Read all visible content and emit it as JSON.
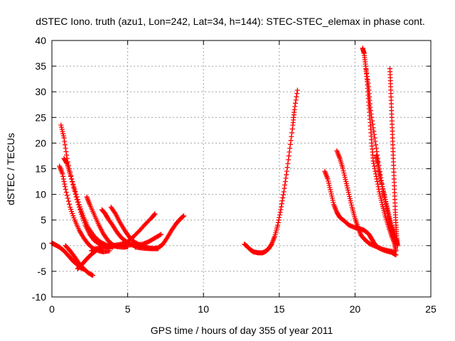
{
  "chart_data": {
    "type": "scatter",
    "title": "dSTEC Iono. truth (azu1, Lon=242, Lat=34, h=144): STEC-STEC_elemax in phase cont.",
    "xlabel": "GPS time / hours of day 355 of year 2011",
    "ylabel": "dSTEC  / TECUs",
    "xlim": [
      0,
      25
    ],
    "ylim": [
      -10,
      40
    ],
    "xticks": [
      0,
      5,
      10,
      15,
      20,
      25
    ],
    "yticks": [
      -10,
      -5,
      0,
      5,
      10,
      15,
      20,
      25,
      30,
      35,
      40
    ],
    "grid": true,
    "legend": "none",
    "marker": "plus",
    "color": "#ff0000",
    "series": [
      {
        "points": [
          [
            0.0,
            0.5
          ],
          [
            0.2,
            0.2
          ],
          [
            0.5,
            -0.3
          ],
          [
            0.8,
            -1.0
          ],
          [
            1.1,
            -2.0
          ],
          [
            1.4,
            -3.0
          ],
          [
            1.7,
            -3.8
          ],
          [
            1.9,
            -4.3
          ],
          [
            2.1,
            -4.6
          ]
        ]
      },
      {
        "points": [
          [
            0.9,
            0.0
          ],
          [
            1.2,
            -1.0
          ],
          [
            1.5,
            -2.2
          ],
          [
            1.8,
            -3.5
          ],
          [
            2.1,
            -4.5
          ],
          [
            2.4,
            -5.3
          ],
          [
            2.7,
            -5.8
          ]
        ]
      },
      {
        "points": [
          [
            0.5,
            15.5
          ],
          [
            0.7,
            14.0
          ],
          [
            0.9,
            11.0
          ],
          [
            1.2,
            7.5
          ],
          [
            1.5,
            5.0
          ],
          [
            1.8,
            3.0
          ],
          [
            2.1,
            1.5
          ],
          [
            2.4,
            0.3
          ],
          [
            2.7,
            -0.5
          ],
          [
            3.1,
            -1.0
          ],
          [
            3.4,
            -1.2
          ],
          [
            3.8,
            -1.0
          ]
        ]
      },
      {
        "points": [
          [
            0.6,
            23.5
          ],
          [
            0.8,
            21.0
          ],
          [
            1.0,
            17.0
          ],
          [
            1.3,
            13.0
          ],
          [
            1.6,
            9.5
          ],
          [
            1.9,
            6.5
          ],
          [
            2.2,
            4.0
          ],
          [
            2.5,
            2.2
          ],
          [
            2.8,
            1.0
          ],
          [
            3.2,
            0.2
          ],
          [
            3.6,
            -0.2
          ],
          [
            4.0,
            -0.3
          ]
        ]
      },
      {
        "points": [
          [
            0.8,
            17.0
          ],
          [
            1.0,
            16.0
          ],
          [
            1.2,
            14.0
          ],
          [
            1.5,
            11.0
          ],
          [
            1.8,
            8.0
          ],
          [
            2.1,
            5.5
          ],
          [
            2.4,
            3.5
          ],
          [
            2.8,
            1.8
          ],
          [
            3.2,
            0.7
          ],
          [
            3.6,
            0.1
          ],
          [
            4.0,
            -0.1
          ],
          [
            4.4,
            0.0
          ]
        ]
      },
      {
        "points": [
          [
            2.3,
            9.5
          ],
          [
            2.5,
            8.0
          ],
          [
            2.8,
            6.0
          ],
          [
            3.1,
            4.0
          ],
          [
            3.4,
            2.3
          ],
          [
            3.7,
            1.0
          ],
          [
            4.0,
            0.2
          ],
          [
            4.3,
            -0.2
          ],
          [
            4.7,
            -0.3
          ],
          [
            5.0,
            -0.2
          ]
        ]
      },
      {
        "points": [
          [
            3.3,
            7.0
          ],
          [
            3.5,
            6.3
          ],
          [
            3.7,
            5.3
          ],
          [
            4.0,
            4.0
          ],
          [
            4.3,
            2.6
          ],
          [
            4.6,
            1.5
          ],
          [
            5.0,
            0.6
          ],
          [
            5.4,
            0.0
          ],
          [
            5.8,
            -0.3
          ],
          [
            6.2,
            -0.5
          ],
          [
            6.6,
            -0.5
          ]
        ]
      },
      {
        "points": [
          [
            3.9,
            7.5
          ],
          [
            4.2,
            6.2
          ],
          [
            4.5,
            4.5
          ],
          [
            4.8,
            3.0
          ],
          [
            5.1,
            1.7
          ],
          [
            5.4,
            0.8
          ],
          [
            5.8,
            0.1
          ],
          [
            6.2,
            -0.3
          ],
          [
            6.6,
            -0.6
          ],
          [
            7.0,
            -0.6
          ]
        ]
      },
      {
        "points": [
          [
            1.7,
            -4.5
          ],
          [
            2.0,
            -3.6
          ],
          [
            2.3,
            -2.6
          ],
          [
            2.6,
            -1.7
          ],
          [
            3.0,
            -0.8
          ],
          [
            3.4,
            -0.2
          ],
          [
            3.8,
            0.0
          ],
          [
            4.2,
            0.1
          ],
          [
            4.6,
            0.3
          ],
          [
            5.0,
            0.8
          ],
          [
            5.4,
            1.8
          ],
          [
            5.8,
            3.0
          ],
          [
            6.2,
            4.3
          ],
          [
            6.6,
            5.5
          ],
          [
            6.8,
            6.2
          ]
        ]
      },
      {
        "points": [
          [
            2.6,
            -1.0
          ],
          [
            3.0,
            -0.5
          ],
          [
            3.5,
            -0.2
          ],
          [
            4.0,
            -0.1
          ],
          [
            4.5,
            0.0
          ],
          [
            5.0,
            0.1
          ],
          [
            5.5,
            0.2
          ],
          [
            6.0,
            0.3
          ],
          [
            6.4,
            0.8
          ],
          [
            6.8,
            1.5
          ],
          [
            7.2,
            2.2
          ]
        ]
      },
      {
        "points": [
          [
            5.5,
            -0.3
          ],
          [
            6.0,
            -0.5
          ],
          [
            6.5,
            -0.6
          ],
          [
            7.0,
            -0.4
          ],
          [
            7.3,
            0.2
          ],
          [
            7.6,
            1.5
          ],
          [
            7.9,
            3.0
          ],
          [
            8.2,
            4.3
          ],
          [
            8.5,
            5.3
          ],
          [
            8.7,
            5.8
          ]
        ]
      },
      {
        "points": [
          [
            12.7,
            0.3
          ],
          [
            12.9,
            -0.2
          ],
          [
            13.1,
            -0.8
          ],
          [
            13.3,
            -1.2
          ],
          [
            13.6,
            -1.4
          ],
          [
            13.9,
            -1.4
          ],
          [
            14.1,
            -1.1
          ],
          [
            14.3,
            -0.6
          ],
          [
            14.5,
            0.3
          ],
          [
            14.7,
            1.8
          ],
          [
            14.9,
            4.0
          ],
          [
            15.1,
            7.0
          ],
          [
            15.3,
            10.5
          ],
          [
            15.5,
            14.5
          ],
          [
            15.7,
            19.0
          ],
          [
            15.9,
            23.5
          ],
          [
            16.0,
            26.5
          ],
          [
            16.2,
            30.3
          ]
        ]
      },
      {
        "points": [
          [
            18.0,
            14.5
          ],
          [
            18.2,
            13.0
          ],
          [
            18.4,
            10.5
          ],
          [
            18.6,
            8.0
          ],
          [
            18.8,
            6.5
          ],
          [
            19.0,
            5.5
          ],
          [
            19.3,
            4.8
          ],
          [
            19.6,
            4.0
          ],
          [
            20.0,
            3.5
          ],
          [
            20.3,
            3.3
          ],
          [
            20.6,
            3.0
          ],
          [
            20.9,
            2.3
          ],
          [
            21.1,
            1.3
          ],
          [
            21.3,
            0.3
          ],
          [
            21.6,
            -0.5
          ],
          [
            22.0,
            -1.0
          ],
          [
            22.4,
            -1.3
          ],
          [
            22.7,
            -1.8
          ]
        ]
      },
      {
        "points": [
          [
            18.8,
            18.5
          ],
          [
            19.0,
            17.0
          ],
          [
            19.2,
            15.0
          ],
          [
            19.4,
            12.5
          ],
          [
            19.6,
            10.0
          ],
          [
            19.8,
            7.5
          ],
          [
            20.0,
            5.3
          ],
          [
            20.2,
            3.5
          ],
          [
            20.4,
            2.0
          ],
          [
            20.7,
            1.0
          ],
          [
            21.0,
            0.3
          ],
          [
            21.4,
            -0.2
          ],
          [
            21.8,
            -0.7
          ],
          [
            22.2,
            -1.0
          ],
          [
            22.6,
            -1.2
          ]
        ]
      },
      {
        "points": [
          [
            20.5,
            38.5
          ],
          [
            20.6,
            37.5
          ],
          [
            20.7,
            35.0
          ],
          [
            20.8,
            32.0
          ],
          [
            20.9,
            28.0
          ],
          [
            21.0,
            24.0
          ],
          [
            21.1,
            20.0
          ],
          [
            21.2,
            16.5
          ],
          [
            21.4,
            13.5
          ],
          [
            21.6,
            10.5
          ],
          [
            21.8,
            8.0
          ],
          [
            22.0,
            5.8
          ],
          [
            22.2,
            3.8
          ],
          [
            22.4,
            2.0
          ],
          [
            22.6,
            0.5
          ],
          [
            22.7,
            -1.0
          ]
        ]
      },
      {
        "points": [
          [
            20.7,
            35.0
          ],
          [
            20.9,
            31.0
          ],
          [
            21.0,
            27.0
          ],
          [
            21.2,
            23.0
          ],
          [
            21.4,
            19.0
          ],
          [
            21.6,
            15.0
          ],
          [
            21.8,
            11.5
          ],
          [
            22.0,
            8.5
          ],
          [
            22.2,
            5.8
          ],
          [
            22.4,
            3.5
          ],
          [
            22.6,
            1.5
          ],
          [
            22.8,
            0.2
          ]
        ]
      },
      {
        "points": [
          [
            21.4,
            17.5
          ],
          [
            21.5,
            16.0
          ],
          [
            21.6,
            14.0
          ],
          [
            21.8,
            11.5
          ],
          [
            22.0,
            9.0
          ],
          [
            22.2,
            6.5
          ],
          [
            22.4,
            4.0
          ],
          [
            22.6,
            2.0
          ],
          [
            22.8,
            0.5
          ]
        ]
      },
      {
        "points": [
          [
            22.3,
            34.5
          ],
          [
            22.35,
            31.0
          ],
          [
            22.4,
            27.0
          ],
          [
            22.45,
            23.0
          ],
          [
            22.5,
            19.0
          ],
          [
            22.55,
            15.0
          ],
          [
            22.6,
            11.0
          ],
          [
            22.65,
            7.0
          ],
          [
            22.7,
            4.0
          ],
          [
            22.75,
            1.5
          ],
          [
            22.8,
            0.0
          ]
        ]
      }
    ]
  }
}
